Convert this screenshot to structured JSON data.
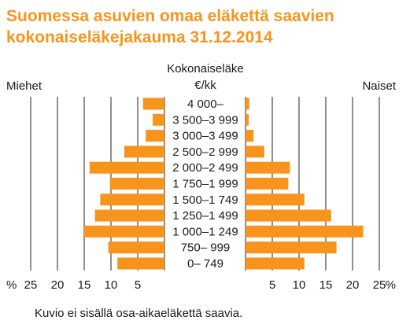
{
  "chart_data": {
    "type": "bar",
    "title": "Suomessa asuvien omaa eläkettä saavien kokonaiseläkejakauma 31.12.2014",
    "title_lines": [
      "Suomessa asuvien omaa eläkettä saavien",
      "kokonaiseläkejakauma 31.12.2014"
    ],
    "category_axis_label_lines": [
      "Kokonaiseläke",
      "€/kk"
    ],
    "categories": [
      "4 000–",
      "3 500–3 999",
      "3 000–3 499",
      "2 500–2 999",
      "2 000–2 499",
      "1 750–1 999",
      "1 500–1 749",
      "1 250–1 499",
      "1 000–1 249",
      "750– 999",
      "0– 749"
    ],
    "series": [
      {
        "name": "Miehet",
        "values": [
          4.0,
          2.2,
          3.5,
          7.5,
          14.0,
          10.2,
          12.0,
          13.0,
          15.0,
          10.5,
          8.8
        ]
      },
      {
        "name": "Naiset",
        "values": [
          0.7,
          0.6,
          1.5,
          3.5,
          8.3,
          8.0,
          11.0,
          16.0,
          22.0,
          17.0,
          11.0
        ]
      }
    ],
    "xlim": [
      0,
      25
    ],
    "xticks": [
      25,
      20,
      15,
      10,
      5
    ],
    "xticks_right": [
      5,
      10,
      15,
      20,
      25
    ],
    "unit_label": "%",
    "grid": true,
    "footnote": "Kuvio ei sisällä osa-aikaeläkettä saavia.",
    "colors": {
      "bar": "#F7941D",
      "title": "#F7941D",
      "text": "#1a1a1a",
      "grid": "#222222"
    }
  }
}
